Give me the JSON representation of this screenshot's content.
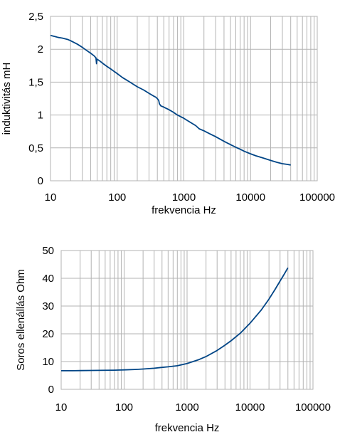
{
  "chart_data": [
    {
      "type": "line",
      "title": "",
      "xlabel": "frekvencia Hz",
      "ylabel": "induktivitás mH",
      "xscale": "log",
      "xlim": [
        10,
        100000
      ],
      "ylim": [
        0,
        2.5
      ],
      "x_ticks": [
        "10",
        "100",
        "1000",
        "10000",
        "100000"
      ],
      "y_ticks": [
        "0",
        "0,5",
        "1",
        "1,5",
        "2",
        "2,5"
      ],
      "grid": true,
      "legend": "none",
      "color": "#004586",
      "series": [
        {
          "x": [
            10,
            12,
            13,
            15,
            18,
            20,
            25,
            30,
            35,
            40,
            45,
            48,
            49,
            50,
            55,
            60,
            70,
            80,
            100,
            120,
            150,
            200,
            250,
            300,
            350,
            380,
            400,
            420,
            430,
            450,
            500,
            600,
            700,
            800,
            1000,
            1200,
            1500,
            1700,
            2000,
            2500,
            3000,
            4000,
            5000,
            6000,
            7000,
            8000,
            10000,
            12000,
            15000,
            20000,
            25000,
            30000,
            35000,
            40000
          ],
          "y": [
            2.21,
            2.19,
            2.18,
            2.17,
            2.15,
            2.13,
            2.08,
            2.03,
            1.98,
            1.94,
            1.9,
            1.87,
            1.78,
            1.85,
            1.82,
            1.79,
            1.74,
            1.7,
            1.63,
            1.57,
            1.51,
            1.43,
            1.38,
            1.33,
            1.29,
            1.27,
            1.25,
            1.22,
            1.17,
            1.14,
            1.12,
            1.08,
            1.04,
            1.0,
            0.95,
            0.9,
            0.84,
            0.79,
            0.76,
            0.71,
            0.67,
            0.6,
            0.55,
            0.51,
            0.48,
            0.45,
            0.41,
            0.38,
            0.35,
            0.31,
            0.28,
            0.26,
            0.25,
            0.24
          ]
        }
      ]
    },
    {
      "type": "line",
      "title": "",
      "xlabel": "frekvencia Hz",
      "ylabel": "Soros ellenállás Ohm",
      "xscale": "log",
      "xlim": [
        10,
        100000
      ],
      "ylim": [
        0,
        50
      ],
      "x_ticks": [
        "10",
        "100",
        "1000",
        "10000",
        "100000"
      ],
      "y_ticks": [
        "0",
        "10",
        "20",
        "30",
        "40",
        "50"
      ],
      "grid": true,
      "legend": "none",
      "color": "#004586",
      "series": [
        {
          "x": [
            10,
            15,
            20,
            30,
            50,
            70,
            100,
            150,
            200,
            300,
            400,
            500,
            700,
            1000,
            1500,
            2000,
            3000,
            4000,
            5000,
            7000,
            10000,
            15000,
            20000,
            25000,
            30000,
            35000,
            40000
          ],
          "y": [
            6.7,
            6.7,
            6.75,
            6.8,
            6.85,
            6.9,
            7.0,
            7.15,
            7.3,
            7.6,
            7.9,
            8.1,
            8.5,
            9.3,
            10.6,
            11.8,
            14.0,
            15.9,
            17.5,
            20.2,
            23.8,
            28.5,
            32.5,
            36.0,
            39.0,
            41.5,
            43.8
          ]
        }
      ]
    }
  ]
}
